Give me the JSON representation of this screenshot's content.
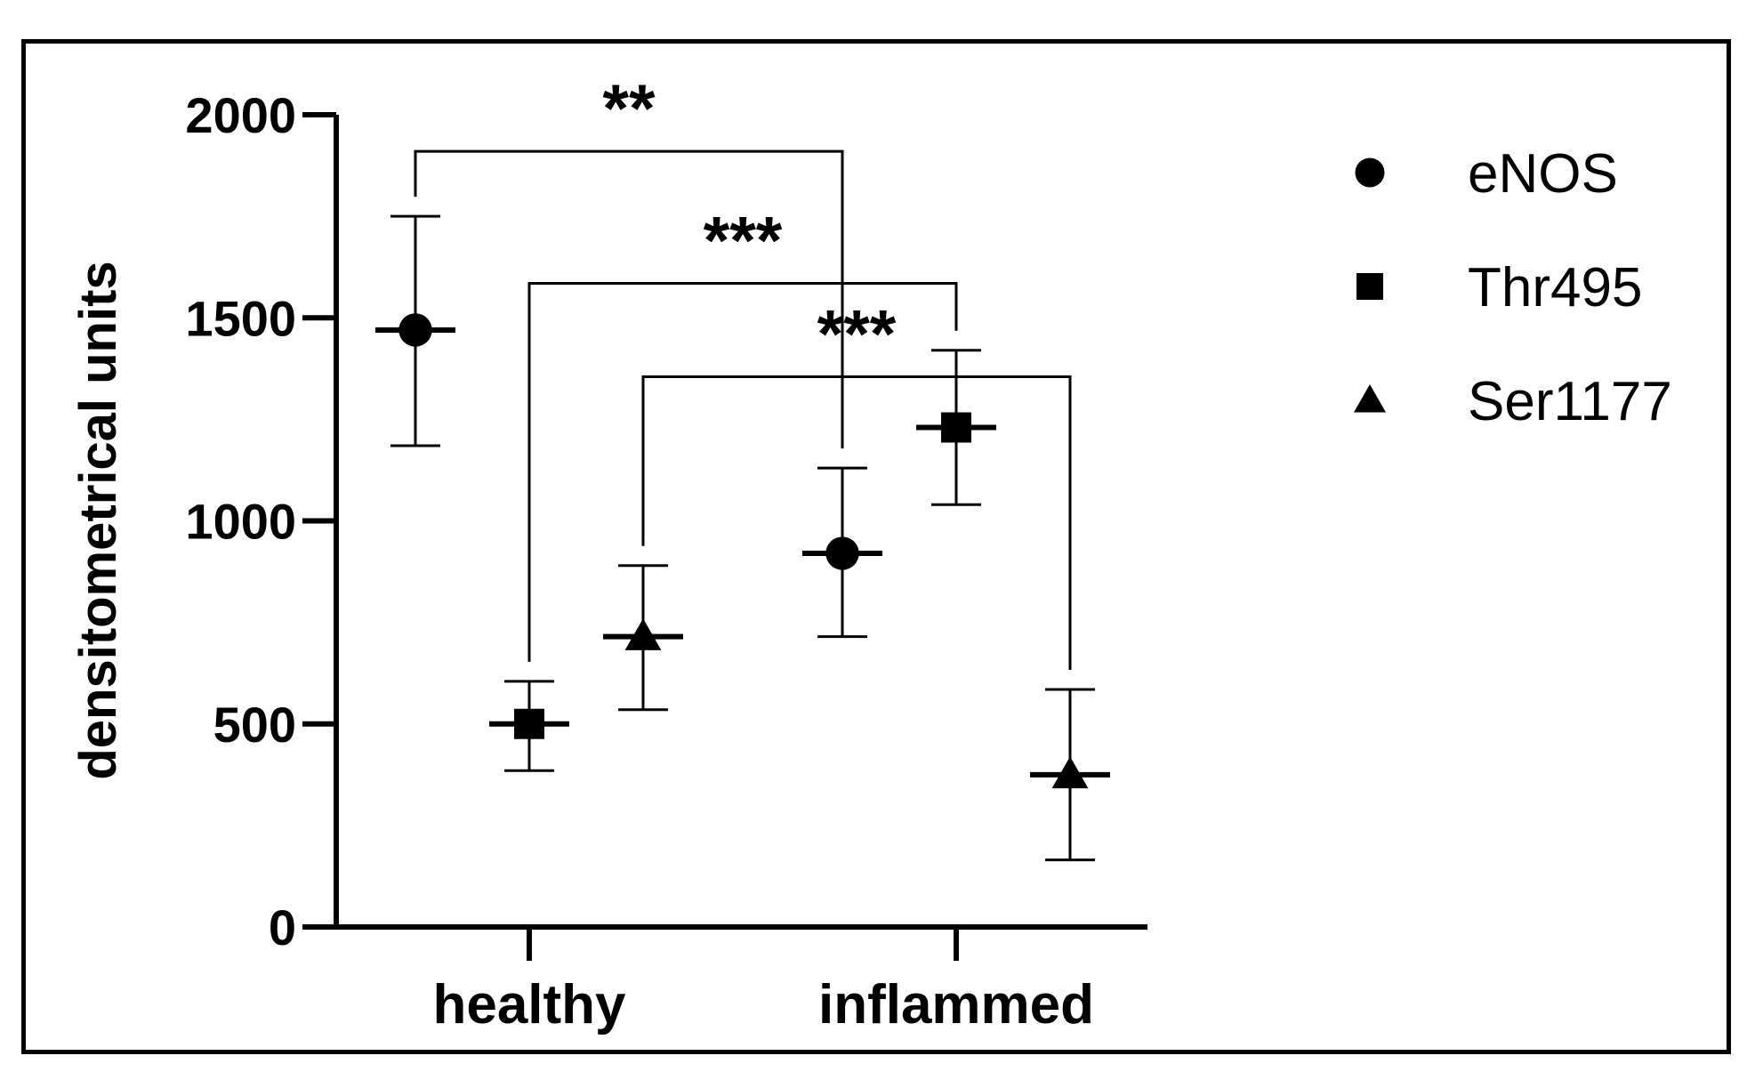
{
  "chart_data": {
    "type": "scatter",
    "title": "",
    "xlabel": "",
    "ylabel": "densitometrical units",
    "ylim": [
      0,
      2000
    ],
    "yticks": [
      0,
      500,
      1000,
      1500,
      2000
    ],
    "yticks_labels": [
      "0",
      "500",
      "1000",
      "1500",
      "2000"
    ],
    "categories": [
      "healthy",
      "inflammed"
    ],
    "legend_position": "top-right",
    "series": [
      {
        "name": "eNOS",
        "marker": "circle",
        "values": [
          1470,
          920
        ],
        "err_low": [
          1185,
          715
        ],
        "err_high": [
          1750,
          1130
        ]
      },
      {
        "name": "Thr495",
        "marker": "square",
        "values": [
          500,
          1230
        ],
        "err_low": [
          385,
          1040
        ],
        "err_high": [
          605,
          1420
        ]
      },
      {
        "name": "Ser1177",
        "marker": "triangle",
        "values": [
          715,
          375
        ],
        "err_low": [
          535,
          165
        ],
        "err_high": [
          890,
          585
        ]
      }
    ],
    "significance": [
      {
        "series": "eNOS",
        "label": "**",
        "bracket_y": 1910
      },
      {
        "series": "Thr495",
        "label": "***",
        "bracket_y": 1585
      },
      {
        "series": "Ser1177",
        "label": "***",
        "bracket_y": 1355
      }
    ]
  }
}
